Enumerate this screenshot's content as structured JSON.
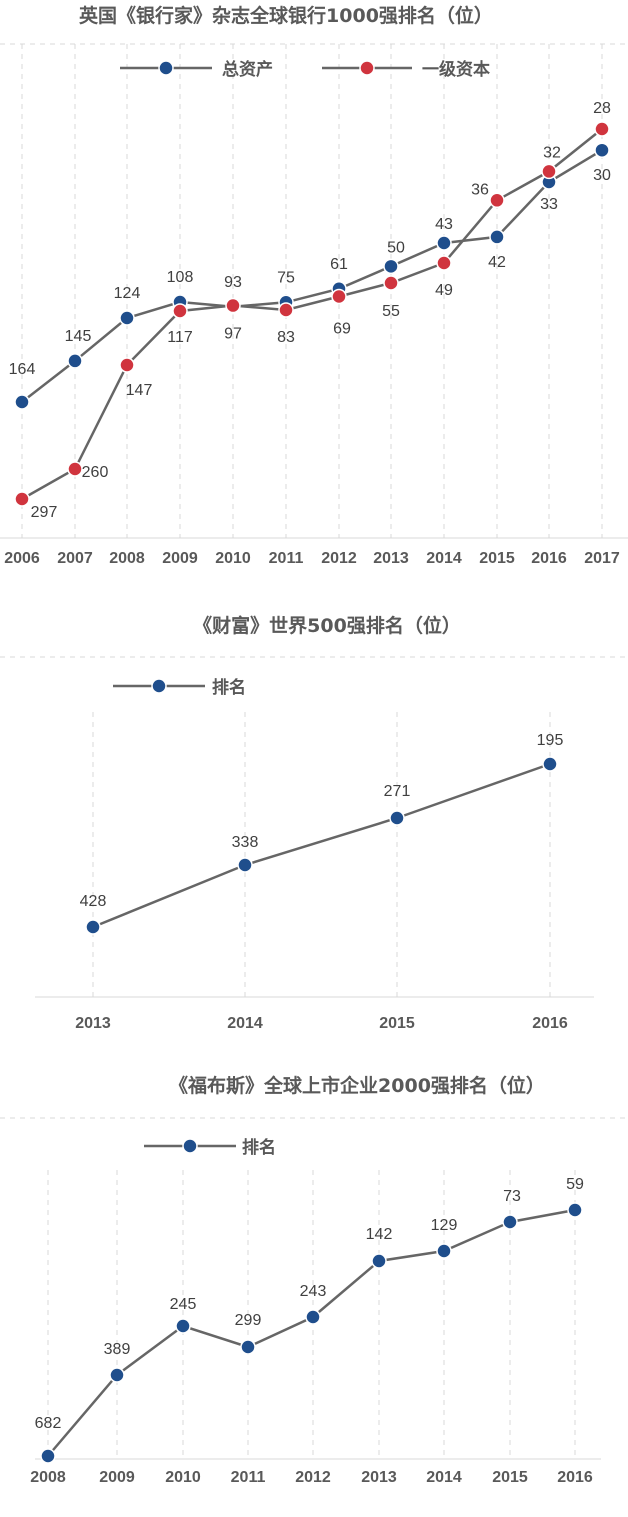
{
  "chart_data": [
    {
      "type": "line",
      "title": "英国《银行家》杂志全球银行1000强排名（位）",
      "x": [
        "2006",
        "2007",
        "2008",
        "2009",
        "2010",
        "2011",
        "2012",
        "2013",
        "2014",
        "2015",
        "2016",
        "2017"
      ],
      "series": [
        {
          "name": "总资产",
          "color": "#1f4e8c",
          "values": [
            164,
            145,
            124,
            108,
            93,
            75,
            61,
            50,
            43,
            42,
            33,
            30
          ]
        },
        {
          "name": "一级资本",
          "color": "#d0343e",
          "values": [
            297,
            260,
            147,
            117,
            97,
            83,
            69,
            55,
            49,
            36,
            32,
            28
          ]
        }
      ],
      "legend": "top",
      "grid": "vertical-dashed"
    },
    {
      "type": "line",
      "title": "《财富》世界500强排名（位）",
      "x": [
        "2013",
        "2014",
        "2015",
        "2016"
      ],
      "series": [
        {
          "name": "排名",
          "color": "#1f4e8c",
          "values": [
            428,
            338,
            271,
            195
          ]
        }
      ],
      "legend": "top-left",
      "grid": "vertical-dashed"
    },
    {
      "type": "line",
      "title": "《福布斯》全球上市企业2000强排名（位）",
      "x": [
        "2008",
        "2009",
        "2010",
        "2011",
        "2012",
        "2013",
        "2014",
        "2015",
        "2016"
      ],
      "series": [
        {
          "name": "排名",
          "color": "#1f4e8c",
          "values": [
            682,
            389,
            245,
            299,
            243,
            142,
            129,
            73,
            59
          ]
        }
      ],
      "legend": "top-left",
      "grid": "vertical-dashed"
    }
  ]
}
